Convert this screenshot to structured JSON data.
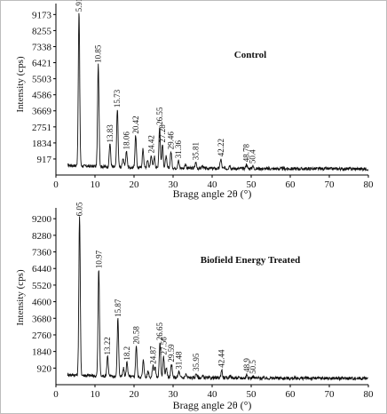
{
  "chart_data": [
    {
      "type": "line",
      "title": "Control",
      "xlabel": "Bragg angle 2θ (°)",
      "ylabel": "Intensity (cps)",
      "xlim": [
        0,
        80
      ],
      "ylim": [
        0,
        9800
      ],
      "x_ticks": [
        0,
        10,
        20,
        30,
        40,
        50,
        60,
        70,
        80
      ],
      "y_ticks": [
        917,
        1834,
        2751,
        3669,
        4586,
        5503,
        6421,
        7338,
        8255,
        9173
      ],
      "baseline": 350,
      "peaks": [
        {
          "x": 5.91,
          "y": 9173,
          "label": "5.91"
        },
        {
          "x": 10.85,
          "y": 6250,
          "label": "10.85"
        },
        {
          "x": 13.83,
          "y": 1700,
          "label": "13.83"
        },
        {
          "x": 15.73,
          "y": 3700,
          "label": "15.73"
        },
        {
          "x": 18.06,
          "y": 1300,
          "label": "18.06"
        },
        {
          "x": 20.42,
          "y": 2200,
          "label": "20.42"
        },
        {
          "x": 24.42,
          "y": 1100,
          "label": "24.42"
        },
        {
          "x": 26.55,
          "y": 2700,
          "label": "26.55"
        },
        {
          "x": 27.28,
          "y": 1700,
          "label": "27.28"
        },
        {
          "x": 29.46,
          "y": 1300,
          "label": "29.46"
        },
        {
          "x": 31.36,
          "y": 800,
          "label": "31.36"
        },
        {
          "x": 35.81,
          "y": 700,
          "label": "35.81"
        },
        {
          "x": 42.22,
          "y": 900,
          "label": "42.22"
        },
        {
          "x": 48.78,
          "y": 600,
          "label": "48.78"
        },
        {
          "x": 50.4,
          "y": 500,
          "label": "50.4"
        }
      ],
      "extra_peaks": [
        {
          "x": 17.2,
          "y": 900
        },
        {
          "x": 22.3,
          "y": 1400
        },
        {
          "x": 23.5,
          "y": 800
        },
        {
          "x": 25.2,
          "y": 1000
        },
        {
          "x": 28.2,
          "y": 1000
        },
        {
          "x": 33.2,
          "y": 600
        },
        {
          "x": 37.5,
          "y": 500
        },
        {
          "x": 44.5,
          "y": 550
        }
      ]
    },
    {
      "type": "line",
      "title": "Biofield Energy Treated",
      "xlabel": "Bragg angle 2θ (°)",
      "ylabel": "Intensity (cps)",
      "xlim": [
        0,
        80
      ],
      "ylim": [
        0,
        9800
      ],
      "x_ticks": [
        0,
        10,
        20,
        30,
        40,
        50,
        60,
        70,
        80
      ],
      "y_ticks": [
        920,
        1840,
        2760,
        3680,
        4600,
        5520,
        6440,
        7360,
        8280,
        9200
      ],
      "baseline": 350,
      "peaks": [
        {
          "x": 6.05,
          "y": 9200,
          "label": "6.05"
        },
        {
          "x": 10.97,
          "y": 6300,
          "label": "10.97"
        },
        {
          "x": 13.22,
          "y": 1500,
          "label": "13.22"
        },
        {
          "x": 15.87,
          "y": 3600,
          "label": "15.87"
        },
        {
          "x": 18.2,
          "y": 1200,
          "label": "18.2"
        },
        {
          "x": 20.58,
          "y": 2100,
          "label": "20.58"
        },
        {
          "x": 24.87,
          "y": 1000,
          "label": "24.87"
        },
        {
          "x": 26.65,
          "y": 2300,
          "label": "26.65"
        },
        {
          "x": 27.56,
          "y": 1500,
          "label": "27.56"
        },
        {
          "x": 29.59,
          "y": 1100,
          "label": "29.59"
        },
        {
          "x": 31.48,
          "y": 700,
          "label": "31.48"
        },
        {
          "x": 35.95,
          "y": 600,
          "label": "35.95"
        },
        {
          "x": 42.44,
          "y": 800,
          "label": "42.44"
        },
        {
          "x": 48.9,
          "y": 550,
          "label": "48.9"
        },
        {
          "x": 50.5,
          "y": 450,
          "label": "50.5"
        }
      ],
      "extra_peaks": [
        {
          "x": 17.3,
          "y": 800
        },
        {
          "x": 22.4,
          "y": 1300
        },
        {
          "x": 23.6,
          "y": 700
        },
        {
          "x": 25.4,
          "y": 900
        },
        {
          "x": 28.3,
          "y": 900
        },
        {
          "x": 33.3,
          "y": 550
        },
        {
          "x": 37.6,
          "y": 450
        },
        {
          "x": 44.6,
          "y": 500
        }
      ]
    }
  ]
}
